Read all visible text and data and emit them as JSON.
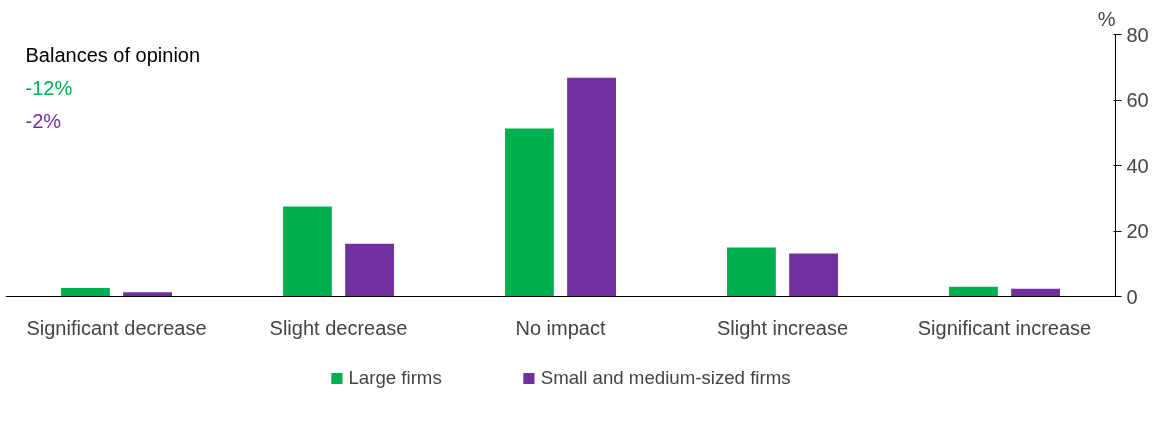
{
  "chart_data": {
    "type": "bar",
    "ylabel": "%",
    "categories": [
      "Significant decrease",
      "Slight decrease",
      "No impact",
      "Slight increase",
      "Significant increase"
    ],
    "series": [
      {
        "name": "Large firms",
        "color": "#00b050",
        "values": [
          2.6,
          27.5,
          51.3,
          15.0,
          3.0
        ]
      },
      {
        "name": "Small and medium-sized firms",
        "color": "#7030a0",
        "values": [
          1.3,
          16.1,
          66.8,
          13.1,
          2.4
        ]
      }
    ],
    "ylim": [
      0,
      80
    ],
    "yticks": [
      0,
      20,
      40,
      60,
      80
    ],
    "grid": false,
    "legend": "bottom",
    "annotations": [
      "Balances of opinion",
      "-12%",
      "-2%"
    ]
  }
}
